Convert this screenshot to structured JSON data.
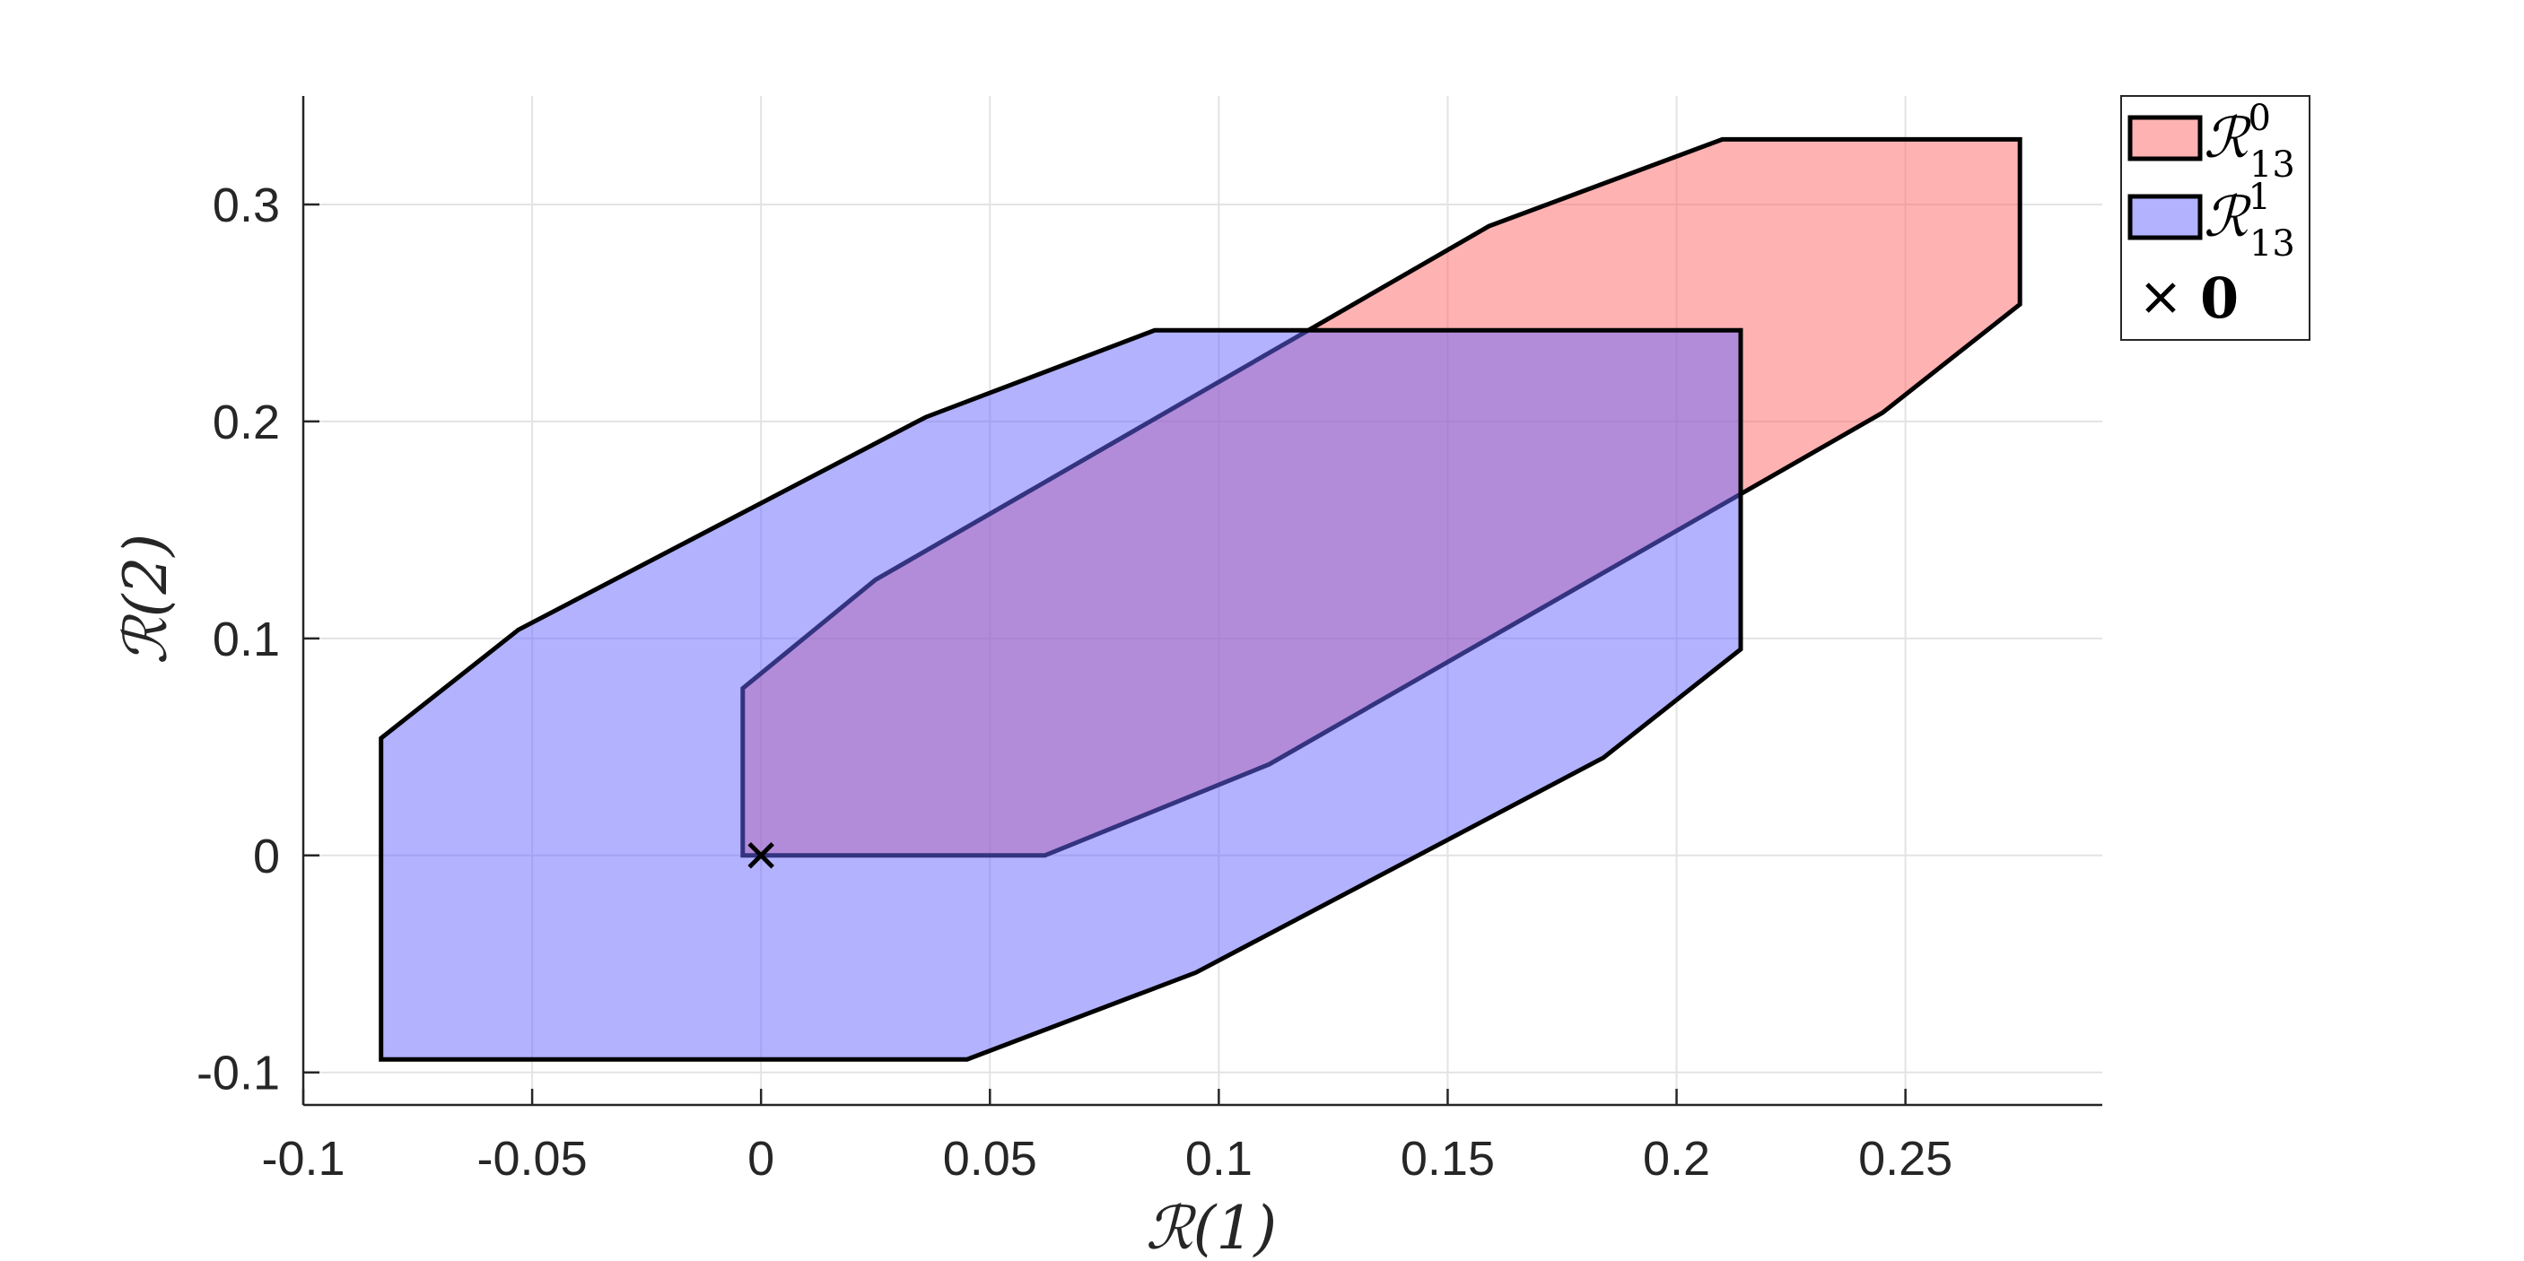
{
  "chart_data": {
    "type": "area",
    "title": "",
    "xlabel": "ℛ(1)",
    "ylabel": "ℛ(2)",
    "xlim": [
      -0.1,
      0.293
    ],
    "ylim": [
      -0.115,
      0.35
    ],
    "xticks": [
      -0.1,
      -0.05,
      0,
      0.05,
      0.1,
      0.15,
      0.2,
      0.25
    ],
    "xtick_labels": [
      "-0.1",
      "-0.05",
      "0",
      "0.05",
      "0.1",
      "0.15",
      "0.2",
      "0.25"
    ],
    "yticks": [
      -0.1,
      0,
      0.1,
      0.2,
      0.3
    ],
    "ytick_labels": [
      "-0.1",
      "0",
      "0.1",
      "0.2",
      "0.3"
    ],
    "grid": true,
    "legend_position": "outside top-right",
    "series": [
      {
        "name": "ℛ",
        "name_superscript": "0",
        "name_subscript": "13",
        "kind": "polygon",
        "color": "#ff6666",
        "opacity": 0.5,
        "x": [
          -0.004,
          0.062,
          0.111,
          0.245,
          0.275,
          0.275,
          0.21,
          0.159,
          0.025,
          -0.004
        ],
        "y": [
          0.0,
          0.0,
          0.042,
          0.204,
          0.254,
          0.33,
          0.33,
          0.29,
          0.127,
          0.077
        ]
      },
      {
        "name": "ℛ",
        "name_superscript": "1",
        "name_subscript": "13",
        "kind": "polygon",
        "color": "#6666ff",
        "opacity": 0.5,
        "x": [
          -0.083,
          0.045,
          0.095,
          0.184,
          0.214,
          0.214,
          0.086,
          0.036,
          -0.053,
          -0.083
        ],
        "y": [
          -0.094,
          -0.094,
          -0.054,
          0.045,
          0.095,
          0.242,
          0.242,
          0.202,
          0.104,
          0.054
        ]
      },
      {
        "name": "0",
        "kind": "marker",
        "marker": "x",
        "color": "#000000",
        "x": [
          0
        ],
        "y": [
          0
        ]
      }
    ]
  }
}
